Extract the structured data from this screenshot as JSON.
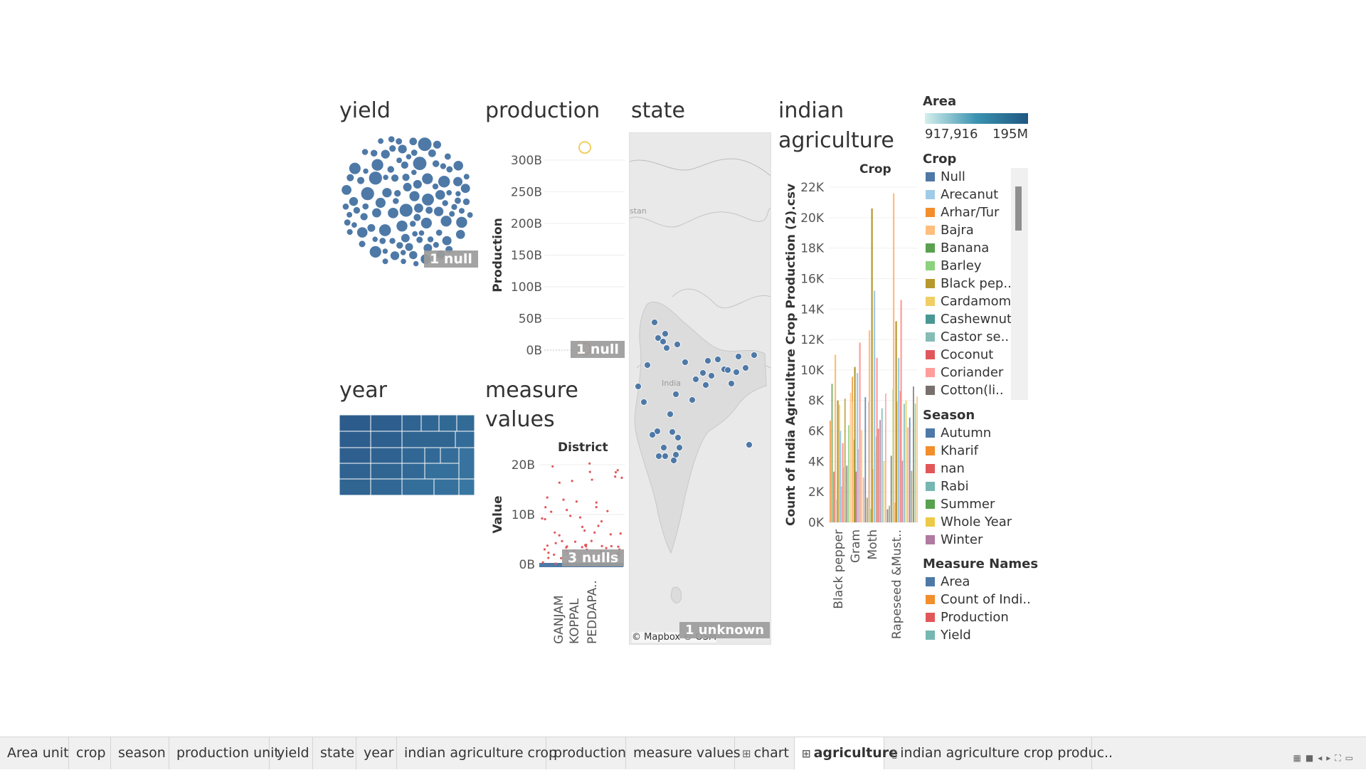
{
  "sheets": {
    "yield": {
      "title": "yield",
      "null_badge": "1 null"
    },
    "production": {
      "title": "production",
      "ylabel": "Production",
      "ticks": [
        "300B",
        "250B",
        "200B",
        "150B",
        "100B",
        "50B",
        "0B"
      ],
      "null_badge": "1 null"
    },
    "state": {
      "title": "state",
      "map_credit": "© Mapbox © OSM",
      "map_label_1": "stan",
      "map_label_2": "India",
      "unknown_badge": "1 unknown"
    },
    "year": {
      "title": "year"
    },
    "measure_values": {
      "title_line1": "measure",
      "title_line2": "values",
      "header": "District",
      "ylabel": "Value",
      "ticks": [
        "20B",
        "10B",
        "0B"
      ],
      "null_badge": "3 nulls",
      "x_labels": [
        "GANJAM",
        "KOPPAL",
        "PEDDAPA.."
      ]
    },
    "agriculture": {
      "title_line1": "indian",
      "title_line2": "agriculture",
      "header": "Crop",
      "ylabel": "Count of India Agriculture Crop Production (2).csv",
      "ticks": [
        "22K",
        "20K",
        "18K",
        "16K",
        "14K",
        "12K",
        "10K",
        "8K",
        "6K",
        "4K",
        "2K",
        "0K"
      ],
      "x_labels": [
        "Black pepper",
        "Gram",
        "Moth",
        "Rapeseed &Must.."
      ]
    }
  },
  "legends": {
    "area": {
      "title": "Area",
      "min": "917,916",
      "max": "195M"
    },
    "crop": {
      "title": "Crop",
      "items": [
        {
          "label": "Null",
          "color": "#4e79a7"
        },
        {
          "label": "Arecanut",
          "color": "#a0cbe8"
        },
        {
          "label": "Arhar/Tur",
          "color": "#f28e2b"
        },
        {
          "label": "Bajra",
          "color": "#ffbe7d"
        },
        {
          "label": "Banana",
          "color": "#59a14f"
        },
        {
          "label": "Barley",
          "color": "#8cd17d"
        },
        {
          "label": "Black pep..",
          "color": "#b6992d"
        },
        {
          "label": "Cardamom",
          "color": "#f1ce63"
        },
        {
          "label": "Cashewnut",
          "color": "#499894"
        },
        {
          "label": "Castor se..",
          "color": "#86bcb6"
        },
        {
          "label": "Coconut",
          "color": "#e15759"
        },
        {
          "label": "Coriander",
          "color": "#ff9d9a"
        },
        {
          "label": "Cotton(li..",
          "color": "#79706e"
        }
      ]
    },
    "season": {
      "title": "Season",
      "items": [
        {
          "label": "Autumn",
          "color": "#4e79a7"
        },
        {
          "label": "Kharif",
          "color": "#f28e2b"
        },
        {
          "label": "nan",
          "color": "#e15759"
        },
        {
          "label": "Rabi",
          "color": "#76b7b2"
        },
        {
          "label": "Summer",
          "color": "#59a14f"
        },
        {
          "label": "Whole Year",
          "color": "#edc948"
        },
        {
          "label": "Winter",
          "color": "#b07aa1"
        }
      ]
    },
    "measure_names": {
      "title": "Measure Names",
      "items": [
        {
          "label": "Area",
          "color": "#4e79a7"
        },
        {
          "label": "Count of Indi..",
          "color": "#f28e2b"
        },
        {
          "label": "Production",
          "color": "#e15759"
        },
        {
          "label": "Yield",
          "color": "#76b7b2"
        }
      ]
    }
  },
  "tabs": [
    {
      "label": "Area unit",
      "icon": ""
    },
    {
      "label": "crop",
      "icon": ""
    },
    {
      "label": "season",
      "icon": ""
    },
    {
      "label": "production unit",
      "icon": ""
    },
    {
      "label": "yield",
      "icon": ""
    },
    {
      "label": "state",
      "icon": ""
    },
    {
      "label": "year",
      "icon": ""
    },
    {
      "label": "indian agriculture crop",
      "icon": ""
    },
    {
      "label": "production",
      "icon": ""
    },
    {
      "label": "measure values",
      "icon": ""
    },
    {
      "label": "chart",
      "icon": "dashboard-icon"
    },
    {
      "label": "agriculture",
      "icon": "dashboard-icon",
      "active": true
    },
    {
      "label": "indian agriculture crop produc..",
      "icon": "story-icon"
    }
  ],
  "chart_data": [
    {
      "type": "scatter",
      "title": "production",
      "ylabel": "Production",
      "ylim": [
        0,
        320000000000
      ],
      "points": [
        {
          "y": 320000000000,
          "color": "#f1ce63"
        },
        {
          "y": 2000000000,
          "color": "#f28e2b"
        }
      ]
    },
    {
      "type": "bar",
      "title": "indian agriculture",
      "ylabel": "Count of India Agriculture Crop Production (2).csv",
      "ylim": [
        0,
        22000
      ],
      "categories": [
        "Black pepper",
        "Gram",
        "Moth",
        "Rapeseed &Must.."
      ],
      "series": [
        {
          "name": "Kharif",
          "values": [
            11000,
            7900,
            12600,
            21600
          ]
        },
        {
          "name": "Whole Year",
          "values": [
            8000,
            10200,
            20600,
            13200
          ]
        },
        {
          "name": "Rabi",
          "values": [
            6000,
            9800,
            15200,
            10800
          ]
        },
        {
          "name": "Winter",
          "values": [
            5200,
            11800,
            10800,
            14600
          ]
        }
      ]
    }
  ]
}
